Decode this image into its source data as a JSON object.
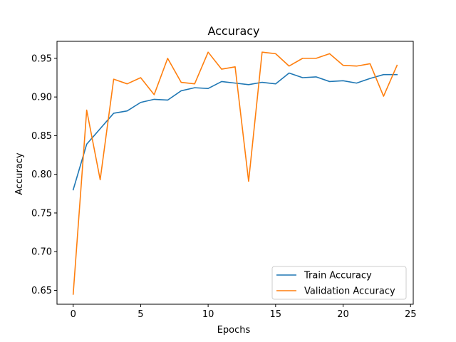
{
  "chart_data": {
    "type": "line",
    "title": "Accuracy",
    "xlabel": "Epochs",
    "ylabel": "Accuracy",
    "xlim": [
      -1.2,
      25.2
    ],
    "ylim": [
      0.632,
      0.972
    ],
    "xticks": [
      0,
      5,
      10,
      15,
      20,
      25
    ],
    "xtick_labels": [
      "0",
      "5",
      "10",
      "15",
      "20",
      "25"
    ],
    "yticks": [
      0.65,
      0.7,
      0.75,
      0.8,
      0.85,
      0.9,
      0.95
    ],
    "ytick_labels": [
      "0.65",
      "0.70",
      "0.75",
      "0.80",
      "0.85",
      "0.90",
      "0.95"
    ],
    "grid": false,
    "legend_position": "lower-right",
    "x": [
      0,
      1,
      2,
      3,
      4,
      5,
      6,
      7,
      8,
      9,
      10,
      11,
      12,
      13,
      14,
      15,
      16,
      17,
      18,
      19,
      20,
      21,
      22,
      23,
      24
    ],
    "series": [
      {
        "name": "Train Accuracy",
        "color": "#1f77b4",
        "values": [
          0.78,
          0.839,
          0.859,
          0.879,
          0.882,
          0.893,
          0.897,
          0.896,
          0.908,
          0.912,
          0.911,
          0.92,
          0.918,
          0.916,
          0.919,
          0.917,
          0.931,
          0.925,
          0.926,
          0.92,
          0.921,
          0.918,
          0.924,
          0.929,
          0.929
        ]
      },
      {
        "name": "Validation Accuracy",
        "color": "#ff7f0e",
        "values": [
          0.645,
          0.883,
          0.793,
          0.923,
          0.917,
          0.925,
          0.903,
          0.95,
          0.919,
          0.917,
          0.958,
          0.936,
          0.939,
          0.791,
          0.958,
          0.956,
          0.94,
          0.95,
          0.95,
          0.956,
          0.941,
          0.94,
          0.943,
          0.901,
          0.941
        ]
      }
    ]
  }
}
